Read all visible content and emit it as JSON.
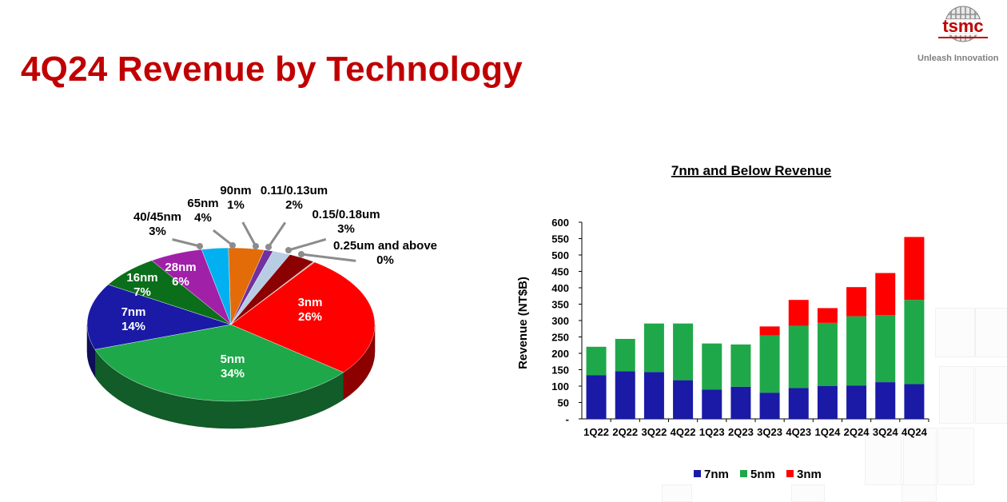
{
  "title": "4Q24 Revenue by Technology",
  "brand": {
    "logo_text": "tsmc",
    "tagline": "Unleash Innovation",
    "color": "#c00000"
  },
  "chart_data": [
    {
      "type": "pie",
      "slices": [
        {
          "label": "3nm",
          "value": 26,
          "display": "26%",
          "color": "#ff0000"
        },
        {
          "label": "5nm",
          "value": 34,
          "display": "34%",
          "color": "#1fa84a"
        },
        {
          "label": "7nm",
          "value": 14,
          "display": "14%",
          "color": "#1a1aa6"
        },
        {
          "label": "16nm",
          "value": 7,
          "display": "7%",
          "color": "#0b6e1a"
        },
        {
          "label": "28nm",
          "value": 6,
          "display": "6%",
          "color": "#a020a8"
        },
        {
          "label": "40/45nm",
          "value": 3,
          "display": "3%",
          "color": "#00b0f0"
        },
        {
          "label": "65nm",
          "value": 4,
          "display": "4%",
          "color": "#e36c09"
        },
        {
          "label": "90nm",
          "value": 1,
          "display": "1%",
          "color": "#7030a0"
        },
        {
          "label": "0.11/0.13um",
          "value": 2,
          "display": "2%",
          "color": "#b8cce4"
        },
        {
          "label": "0.15/0.18um",
          "value": 3,
          "display": "3%",
          "color": "#8b0000"
        },
        {
          "label": "0.25um and above",
          "value": 0,
          "display": "0%",
          "color": "#bfbfbf"
        }
      ]
    },
    {
      "type": "bar",
      "stacked": true,
      "title": "7nm and Below Revenue",
      "ylabel": "Revenue (NT$B)",
      "ylim": [
        0,
        600
      ],
      "yticks": [
        "-",
        "50",
        "100",
        "150",
        "200",
        "250",
        "300",
        "350",
        "400",
        "450",
        "500",
        "550",
        "600"
      ],
      "categories": [
        "1Q22",
        "2Q22",
        "3Q22",
        "4Q22",
        "1Q23",
        "2Q23",
        "3Q23",
        "4Q23",
        "1Q24",
        "2Q24",
        "3Q24",
        "4Q24"
      ],
      "series": [
        {
          "name": "7nm",
          "color": "#1a1aa6",
          "values": [
            133,
            145,
            143,
            118,
            89,
            98,
            80,
            94,
            100,
            102,
            112,
            106
          ]
        },
        {
          "name": "5nm",
          "color": "#1fa84a",
          "values": [
            87,
            99,
            148,
            173,
            141,
            129,
            175,
            190,
            193,
            211,
            205,
            257
          ]
        },
        {
          "name": "3nm",
          "color": "#ff0000",
          "values": [
            0,
            0,
            0,
            0,
            0,
            0,
            27,
            79,
            45,
            89,
            128,
            192
          ]
        }
      ],
      "legend_position": "bottom"
    }
  ]
}
